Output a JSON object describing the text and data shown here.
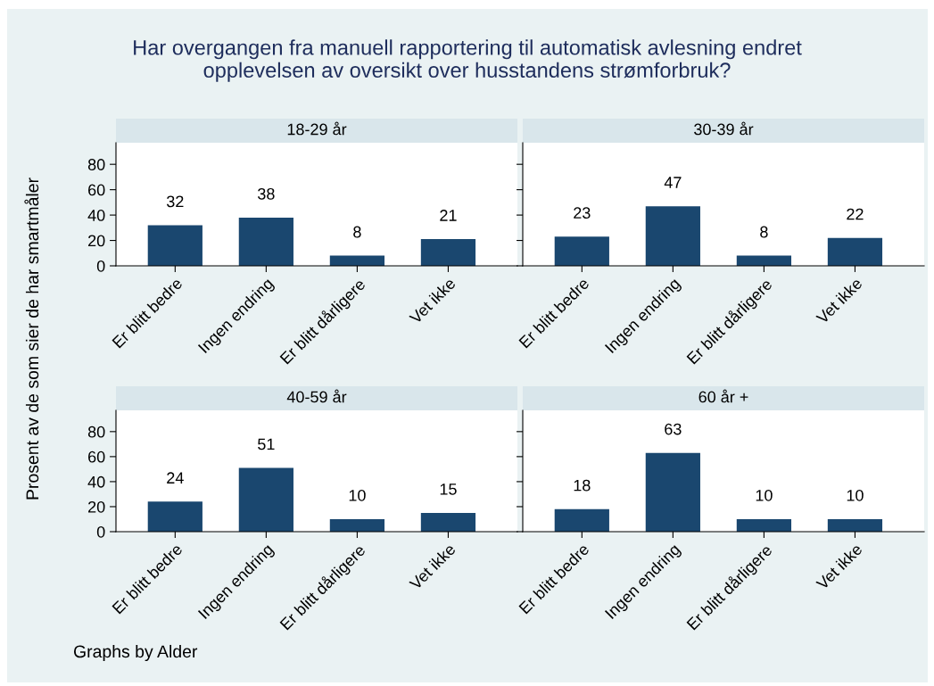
{
  "chart_data": [
    {
      "type": "other",
      "title": "Har overgangen fra manuell rapportering til automatisk avlesning endret\nopplevelsen av oversikt over husstandens strømforbruk?",
      "ylabel": "Prosent av de som sier de har smartmåler",
      "annotations": [
        "Graphs by Alder"
      ]
    },
    {
      "type": "bar",
      "title": "18-29 år",
      "categories": [
        "Er blitt bedre",
        "Ingen endring",
        "Er blitt dårligere",
        "Vet ikke"
      ],
      "values": [
        32,
        38,
        8,
        21
      ],
      "color": "#1a476f",
      "ylim": [
        0,
        97
      ],
      "yticks": [
        0,
        20,
        40,
        60,
        80
      ],
      "data_labels": true
    },
    {
      "type": "bar",
      "title": "30-39 år",
      "categories": [
        "Er blitt bedre",
        "Ingen endring",
        "Er blitt dårligere",
        "Vet ikke"
      ],
      "values": [
        23,
        47,
        8,
        22
      ],
      "color": "#1a476f",
      "ylim": [
        0,
        97
      ],
      "yticks": [
        0,
        20,
        40,
        60,
        80
      ],
      "data_labels": true,
      "tick_labels": "x"
    },
    {
      "type": "bar",
      "title": "40-59 år",
      "categories": [
        "Er blitt bedre",
        "Ingen endring",
        "Er blitt dårligere",
        "Vet ikke"
      ],
      "values": [
        24,
        51,
        10,
        15
      ],
      "color": "#1a476f",
      "ylim": [
        0,
        97
      ],
      "yticks": [
        0,
        20,
        40,
        60,
        80
      ],
      "data_labels": true
    },
    {
      "type": "bar",
      "title": "60 år +",
      "categories": [
        "Er blitt bedre",
        "Ingen endring",
        "Er blitt dårligere",
        "Vet ikke"
      ],
      "values": [
        18,
        63,
        10,
        10
      ],
      "color": "#1a476f",
      "ylim": [
        0,
        97
      ],
      "yticks": [
        0,
        20,
        40,
        60,
        80
      ],
      "data_labels": true,
      "tick_labels": "x"
    }
  ]
}
